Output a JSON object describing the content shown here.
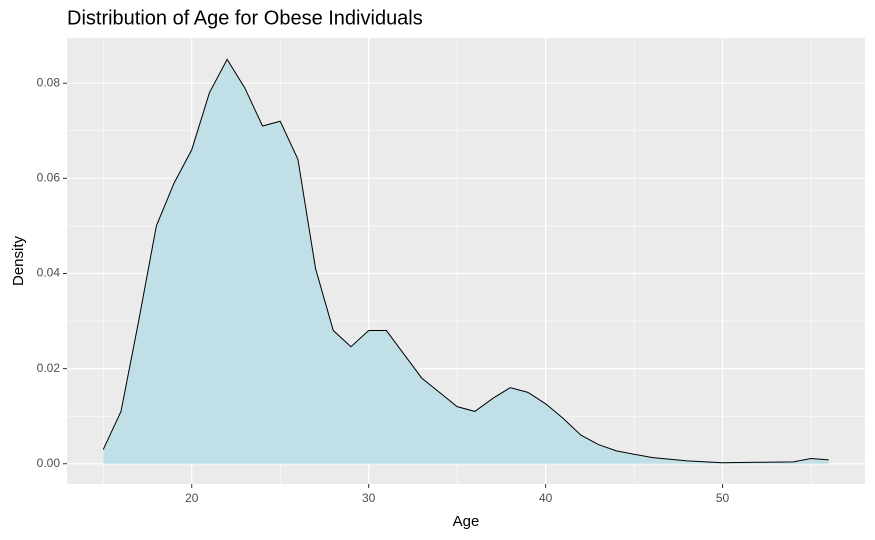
{
  "chart_data": {
    "type": "density",
    "title": "Distribution of Age for Obese Individuals",
    "x_label": "Age",
    "y_label": "Density",
    "x": [
      15,
      16,
      17,
      18,
      19,
      20,
      21,
      22,
      23,
      24,
      25,
      26,
      27,
      28,
      29,
      30,
      31,
      32,
      33,
      34,
      35,
      36,
      37,
      38,
      39,
      40,
      41,
      42,
      43,
      44,
      46,
      48,
      50,
      52,
      54,
      55,
      56
    ],
    "values": [
      0.003,
      0.011,
      0.03,
      0.05,
      0.059,
      0.066,
      0.078,
      0.085,
      0.079,
      0.071,
      0.072,
      0.064,
      0.041,
      0.028,
      0.0246,
      0.028,
      0.028,
      0.023,
      0.018,
      0.015,
      0.012,
      0.011,
      0.0137,
      0.016,
      0.015,
      0.0126,
      0.0095,
      0.006,
      0.004,
      0.0027,
      0.0013,
      0.0006,
      0.0002,
      0.0003,
      0.0004,
      0.0011,
      0.0008
    ],
    "fill": "#c0dfe7",
    "color": "#000000",
    "xlim": [
      12.95,
      58.05
    ],
    "xticks": [
      20,
      30,
      40,
      50
    ],
    "ylim": [
      -0.00426,
      0.0895
    ],
    "yticks": [
      {
        "value": 0,
        "label": "0.00"
      },
      {
        "value": 0.02,
        "label": "0.02"
      },
      {
        "value": 0.04,
        "label": "0.04"
      },
      {
        "value": 0.06,
        "label": "0.06"
      },
      {
        "value": 0.08,
        "label": "0.08"
      }
    ],
    "grid": true
  }
}
